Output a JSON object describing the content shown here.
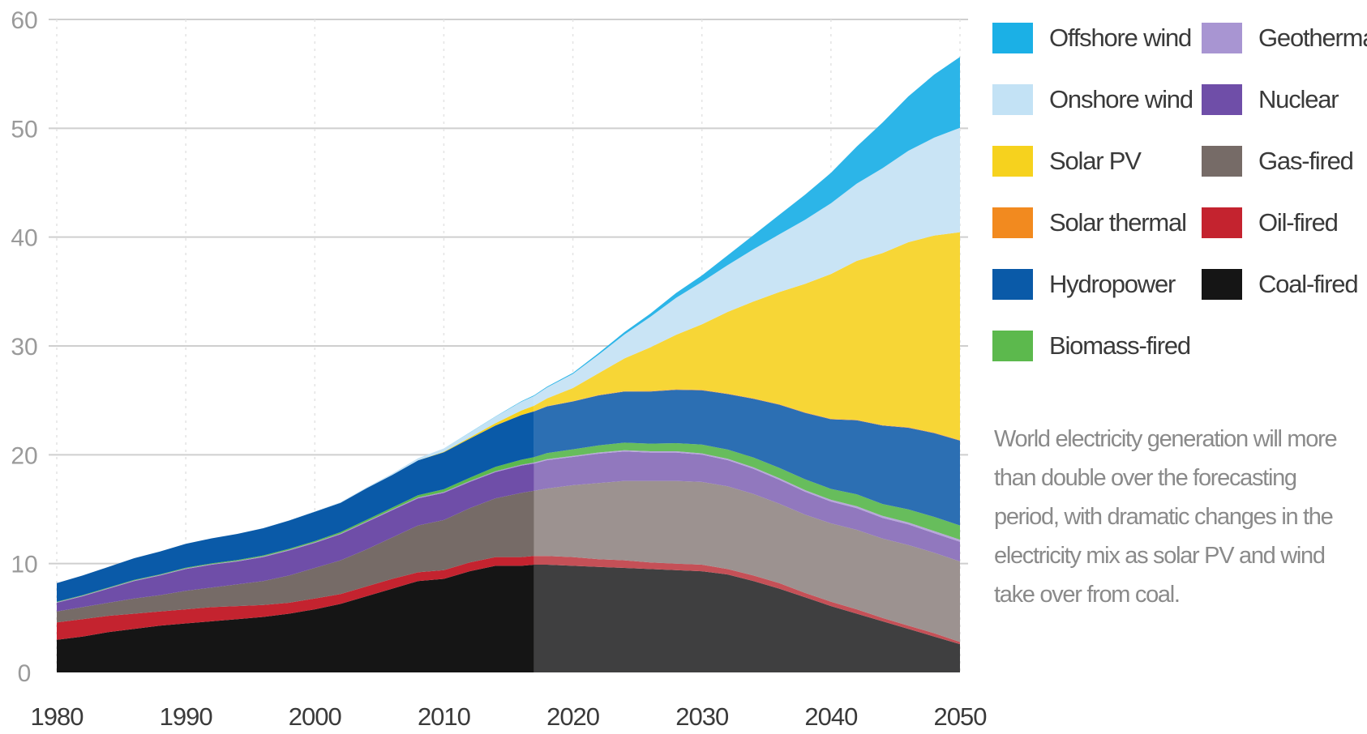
{
  "chart_data": {
    "type": "area",
    "stacked": true,
    "x": [
      1980,
      1982,
      1984,
      1986,
      1988,
      1990,
      1992,
      1994,
      1996,
      1998,
      2000,
      2002,
      2004,
      2006,
      2008,
      2010,
      2012,
      2014,
      2016,
      2017,
      2018,
      2020,
      2022,
      2024,
      2026,
      2028,
      2030,
      2032,
      2034,
      2036,
      2038,
      2040,
      2042,
      2044,
      2046,
      2048,
      2050
    ],
    "xticks": [
      1980,
      1990,
      2000,
      2010,
      2020,
      2030,
      2040,
      2050
    ],
    "xlim": [
      1980,
      2050
    ],
    "ylim": [
      0,
      60
    ],
    "yticks": [
      0,
      10,
      20,
      30,
      40,
      50,
      60
    ],
    "forecast_start": 2017,
    "grid": "horizontal",
    "legend_position": "right",
    "series": [
      {
        "name": "Coal-fired",
        "color": "#151515",
        "forecast_color": "#3f3f40",
        "values": [
          3.0,
          3.3,
          3.7,
          4.0,
          4.3,
          4.5,
          4.7,
          4.9,
          5.1,
          5.4,
          5.8,
          6.3,
          7.0,
          7.7,
          8.4,
          8.6,
          9.3,
          9.8,
          9.8,
          9.9,
          9.9,
          9.8,
          9.7,
          9.6,
          9.5,
          9.4,
          9.3,
          9.0,
          8.4,
          7.7,
          6.9,
          6.1,
          5.4,
          4.7,
          4.0,
          3.3,
          2.6
        ]
      },
      {
        "name": "Oil-fired",
        "color": "#c4232f",
        "forecast_color": "#c55057",
        "values": [
          1.6,
          1.6,
          1.5,
          1.4,
          1.3,
          1.3,
          1.3,
          1.2,
          1.1,
          1.0,
          1.0,
          0.9,
          0.9,
          0.9,
          0.8,
          0.8,
          0.8,
          0.8,
          0.8,
          0.8,
          0.8,
          0.8,
          0.7,
          0.7,
          0.6,
          0.6,
          0.6,
          0.5,
          0.5,
          0.5,
          0.4,
          0.4,
          0.4,
          0.3,
          0.3,
          0.3,
          0.2
        ]
      },
      {
        "name": "Gas-fired",
        "color": "#766b67",
        "forecast_color": "#9c9290",
        "values": [
          1.0,
          1.1,
          1.2,
          1.4,
          1.5,
          1.7,
          1.8,
          2.0,
          2.2,
          2.5,
          2.8,
          3.1,
          3.4,
          3.8,
          4.3,
          4.6,
          5.0,
          5.4,
          5.9,
          6.0,
          6.2,
          6.6,
          7.0,
          7.3,
          7.5,
          7.6,
          7.6,
          7.6,
          7.5,
          7.3,
          7.2,
          7.2,
          7.3,
          7.3,
          7.4,
          7.4,
          7.4
        ]
      },
      {
        "name": "Nuclear",
        "color": "#6f4ea8",
        "forecast_color": "#9178be",
        "values": [
          0.8,
          1.0,
          1.3,
          1.6,
          1.8,
          2.0,
          2.1,
          2.1,
          2.2,
          2.3,
          2.3,
          2.4,
          2.5,
          2.5,
          2.5,
          2.5,
          2.4,
          2.4,
          2.5,
          2.5,
          2.6,
          2.6,
          2.7,
          2.7,
          2.6,
          2.6,
          2.5,
          2.4,
          2.3,
          2.2,
          2.1,
          2.0,
          2.0,
          1.9,
          1.9,
          1.8,
          1.8
        ]
      },
      {
        "name": "Geothermal",
        "color": "#a895d2",
        "forecast_color": "#b7a7da",
        "values": [
          0.05,
          0.05,
          0.05,
          0.05,
          0.06,
          0.06,
          0.06,
          0.06,
          0.07,
          0.07,
          0.07,
          0.07,
          0.07,
          0.08,
          0.08,
          0.08,
          0.08,
          0.09,
          0.09,
          0.09,
          0.1,
          0.1,
          0.11,
          0.11,
          0.12,
          0.12,
          0.13,
          0.13,
          0.14,
          0.15,
          0.15,
          0.16,
          0.17,
          0.18,
          0.18,
          0.19,
          0.2
        ]
      },
      {
        "name": "Biomass-fired",
        "color": "#5cb94d",
        "forecast_color": "#67bd5c",
        "values": [
          0.05,
          0.05,
          0.05,
          0.05,
          0.05,
          0.06,
          0.06,
          0.07,
          0.08,
          0.09,
          0.1,
          0.12,
          0.14,
          0.17,
          0.2,
          0.25,
          0.3,
          0.4,
          0.45,
          0.5,
          0.55,
          0.6,
          0.65,
          0.7,
          0.7,
          0.75,
          0.8,
          0.85,
          0.9,
          0.95,
          1.0,
          1.0,
          1.1,
          1.1,
          1.2,
          1.3,
          1.3
        ]
      },
      {
        "name": "Hydropower",
        "color": "#0a5aa8",
        "forecast_color": "#2c6fb3",
        "values": [
          1.7,
          1.8,
          1.9,
          2.0,
          2.1,
          2.2,
          2.3,
          2.4,
          2.5,
          2.6,
          2.7,
          2.7,
          2.9,
          3.0,
          3.2,
          3.4,
          3.6,
          3.8,
          4.1,
          4.2,
          4.3,
          4.4,
          4.6,
          4.7,
          4.8,
          4.9,
          5.0,
          5.1,
          5.4,
          5.8,
          6.1,
          6.4,
          6.8,
          7.2,
          7.5,
          7.7,
          7.8
        ]
      },
      {
        "name": "Solar thermal",
        "color": "#f28a1f",
        "forecast_color": "#f4a347",
        "values": [
          0,
          0,
          0,
          0,
          0,
          0,
          0,
          0,
          0,
          0,
          0,
          0,
          0,
          0,
          0,
          0,
          0,
          0.01,
          0.02,
          0.02,
          0.03,
          0.03,
          0.04,
          0.04,
          0.05,
          0.05,
          0.05,
          0.05,
          0.05,
          0.05,
          0.05,
          0.05,
          0.05,
          0.05,
          0.05,
          0.05,
          0.05
        ]
      },
      {
        "name": "Solar PV",
        "color": "#f6d21e",
        "forecast_color": "#f7d636",
        "values": [
          0,
          0,
          0,
          0,
          0,
          0,
          0,
          0,
          0,
          0,
          0,
          0,
          0,
          0,
          0,
          0.05,
          0.1,
          0.2,
          0.4,
          0.5,
          0.7,
          1.2,
          2.0,
          3.0,
          4.0,
          5.0,
          6.0,
          7.5,
          8.9,
          10.3,
          11.8,
          13.3,
          14.6,
          15.8,
          17.0,
          18.1,
          19.1
        ]
      },
      {
        "name": "Onshore wind",
        "color": "#c3e2f5",
        "forecast_color": "#c9e4f5",
        "values": [
          0,
          0,
          0,
          0,
          0,
          0,
          0,
          0,
          0.01,
          0.02,
          0.03,
          0.05,
          0.08,
          0.12,
          0.2,
          0.3,
          0.45,
          0.6,
          0.8,
          0.9,
          1.0,
          1.3,
          1.7,
          2.2,
          2.8,
          3.4,
          3.9,
          4.3,
          4.8,
          5.3,
          5.9,
          6.5,
          7.1,
          7.8,
          8.4,
          9.0,
          9.6
        ]
      },
      {
        "name": "Offshore wind",
        "color": "#1bb0e6",
        "forecast_color": "#2cb5e8",
        "values": [
          0,
          0,
          0,
          0,
          0,
          0,
          0,
          0,
          0,
          0,
          0,
          0,
          0,
          0,
          0,
          0,
          0.01,
          0.02,
          0.05,
          0.06,
          0.08,
          0.1,
          0.15,
          0.22,
          0.3,
          0.45,
          0.6,
          0.9,
          1.3,
          1.8,
          2.3,
          2.8,
          3.4,
          4.2,
          5.0,
          5.8,
          6.5
        ]
      }
    ],
    "legend_order": [
      "Offshore wind",
      "Onshore wind",
      "Solar PV",
      "Solar thermal",
      "Hydropower",
      "Biomass-fired",
      "Geothermal",
      "Nuclear",
      "Gas-fired",
      "Oil-fired",
      "Coal-fired"
    ]
  },
  "annotation": "World electricity generation will more than double over the forecasting period, with dramatic changes in the electricity mix as solar PV and wind take over from coal."
}
